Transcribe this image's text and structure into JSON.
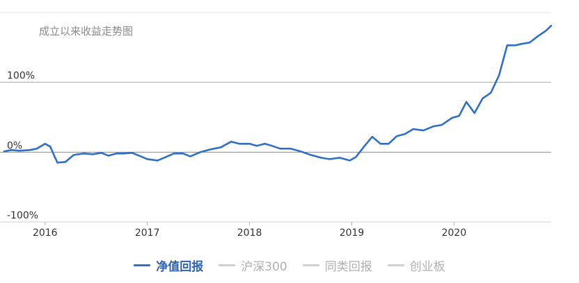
{
  "chart_data": {
    "type": "line",
    "title": "成立以来收益走势图",
    "xlabel": "",
    "ylabel": "",
    "x_range": [
      2015.6,
      2020.95
    ],
    "ylim": [
      -100,
      200
    ],
    "y_ticks": [
      {
        "value": 100,
        "label": "100%"
      },
      {
        "value": 0,
        "label": "0%"
      },
      {
        "value": -100,
        "label": "-100%"
      }
    ],
    "x_ticks": [
      {
        "value": 2016,
        "label": "2016"
      },
      {
        "value": 2017,
        "label": "2017"
      },
      {
        "value": 2018,
        "label": "2018"
      },
      {
        "value": 2019,
        "label": "2019"
      },
      {
        "value": 2020,
        "label": "2020"
      }
    ],
    "grid": true,
    "legend_position": "bottom",
    "series": [
      {
        "name": "净值回报",
        "color": "#2f6fc7",
        "x": [
          2015.6,
          2015.67,
          2015.75,
          2015.85,
          2015.92,
          2016.0,
          2016.05,
          2016.12,
          2016.2,
          2016.28,
          2016.38,
          2016.47,
          2016.55,
          2016.62,
          2016.7,
          2016.77,
          2016.85,
          2016.92,
          2017.0,
          2017.1,
          2017.18,
          2017.26,
          2017.35,
          2017.42,
          2017.52,
          2017.62,
          2017.72,
          2017.82,
          2017.9,
          2018.0,
          2018.07,
          2018.15,
          2018.22,
          2018.3,
          2018.4,
          2018.5,
          2018.6,
          2018.7,
          2018.78,
          2018.88,
          2018.98,
          2019.04,
          2019.12,
          2019.2,
          2019.28,
          2019.36,
          2019.44,
          2019.52,
          2019.6,
          2019.7,
          2019.8,
          2019.88,
          2019.98,
          2020.05,
          2020.12,
          2020.2,
          2020.28,
          2020.36,
          2020.44,
          2020.52,
          2020.6,
          2020.66,
          2020.74,
          2020.82,
          2020.9,
          2020.95
        ],
        "values": [
          1,
          3,
          2,
          3,
          5,
          12,
          8,
          -15,
          -14,
          -4,
          -2,
          -3,
          -1,
          -5,
          -2,
          -2,
          -1,
          -5,
          -10,
          -12,
          -7,
          -2,
          -2,
          -6,
          0,
          4,
          7,
          15,
          12,
          12,
          9,
          12,
          9,
          5,
          5,
          1,
          -4,
          -8,
          -10,
          -8,
          -12,
          -7,
          8,
          22,
          12,
          12,
          23,
          26,
          33,
          31,
          37,
          39,
          49,
          52,
          72,
          56,
          77,
          85,
          110,
          153,
          153,
          155,
          157,
          166,
          174,
          181
        ]
      },
      {
        "name": "沪深300",
        "color": "#cfcfcf",
        "x": [],
        "values": []
      },
      {
        "name": "同类回报",
        "color": "#cfcfcf",
        "x": [],
        "values": []
      },
      {
        "name": "创业板",
        "color": "#cfcfcf",
        "x": [],
        "values": []
      }
    ]
  },
  "legend": {
    "items": [
      {
        "label": "净值回报",
        "active": true
      },
      {
        "label": "沪深300",
        "active": false
      },
      {
        "label": "同类回报",
        "active": false
      },
      {
        "label": "创业板",
        "active": false
      }
    ]
  }
}
